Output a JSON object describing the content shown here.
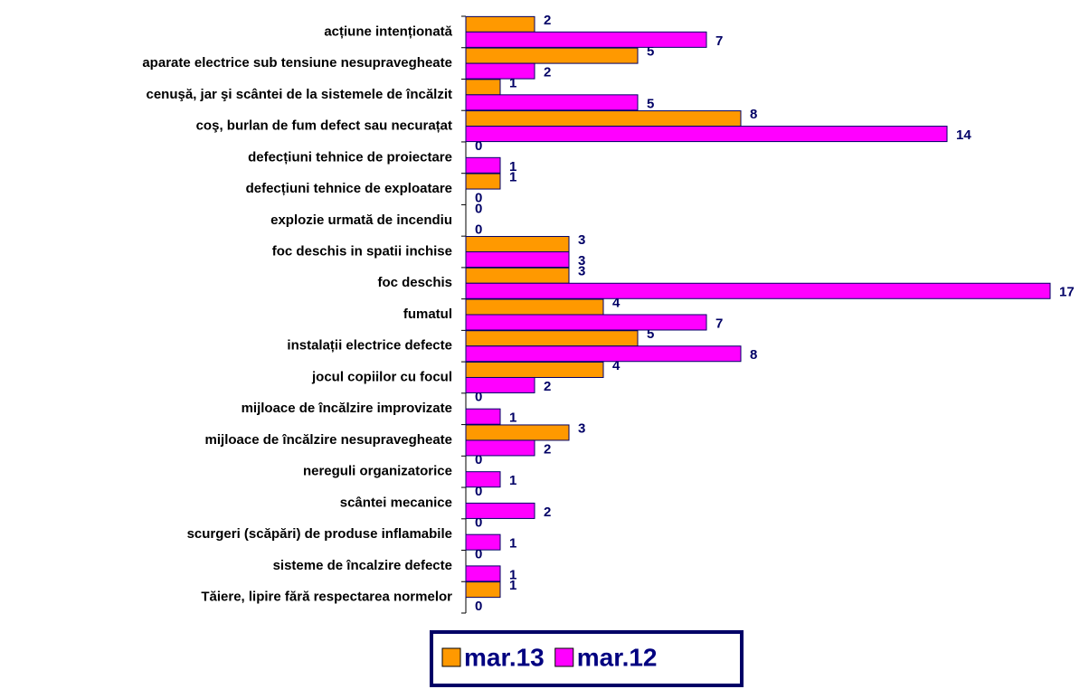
{
  "chart_data": {
    "type": "hbar",
    "categories": [
      "acțiune intenționată",
      "aparate electrice sub tensiune nesupravegheate",
      "cenuşă, jar şi scântei de la sistemele de încălzit",
      "coş, burlan  de fum defect sau necurațat",
      "defecțiuni tehnice de proiectare",
      "defecțiuni tehnice de exploatare",
      "explozie urmată de incendiu",
      "foc deschis in spatii inchise",
      "foc deschis",
      "fumatul",
      "instalații electrice defecte",
      "jocul copiilor cu focul",
      "mijloace de încălzire improvizate",
      "mijloace de încălzire nesupravegheate",
      "nereguli organizatorice",
      "scântei mecanice",
      "scurgeri (scăpări) de produse inflamabile",
      "sisteme de încalzire defecte",
      "Tăiere, lipire fără respectarea normelor"
    ],
    "series": [
      {
        "name": "mar.13",
        "color": "#ff9900",
        "values": [
          2,
          5,
          1,
          8,
          0,
          1,
          0,
          3,
          3,
          4,
          5,
          4,
          0,
          3,
          0,
          0,
          0,
          0,
          1
        ]
      },
      {
        "name": "mar.12",
        "color": "#ff00ff",
        "values": [
          7,
          2,
          5,
          14,
          1,
          0,
          0,
          3,
          17,
          7,
          8,
          2,
          1,
          2,
          1,
          2,
          1,
          1,
          0
        ]
      }
    ],
    "legend": "bottom"
  }
}
